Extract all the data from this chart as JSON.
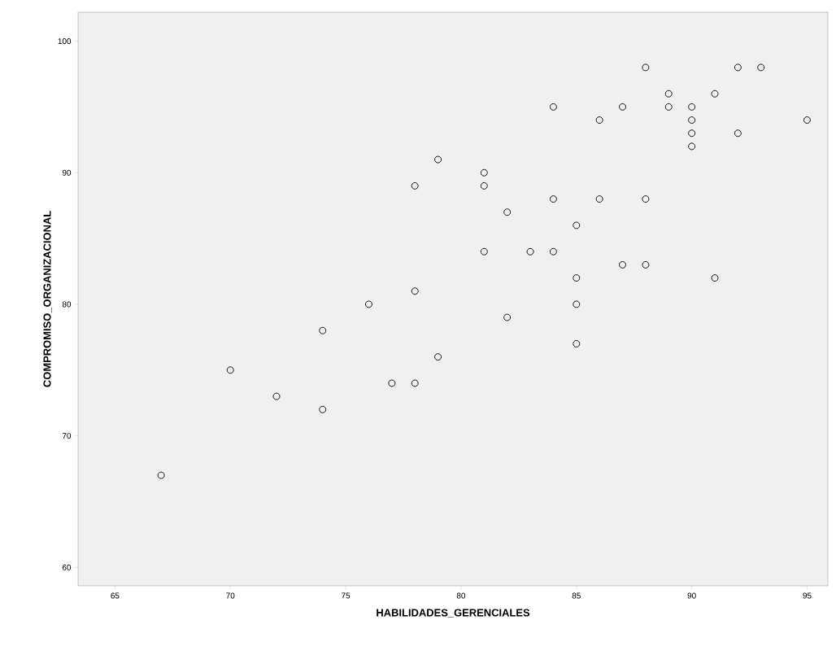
{
  "chart_data": {
    "type": "scatter",
    "xlabel": "HABILIDADES_GERENCIALES",
    "ylabel": "COMPROMISO_ORGANIZACIONAL",
    "x": [
      67,
      70,
      72,
      74,
      74,
      76,
      77,
      78,
      78,
      78,
      79,
      79,
      81,
      81,
      81,
      82,
      82,
      83,
      84,
      84,
      84,
      85,
      85,
      85,
      85,
      86,
      86,
      87,
      87,
      88,
      88,
      88,
      89,
      89,
      90,
      90,
      90,
      90,
      91,
      91,
      92,
      92,
      93,
      95
    ],
    "values": [
      67,
      75,
      73,
      78,
      72,
      80,
      74,
      74,
      81,
      89,
      91,
      76,
      90,
      89,
      84,
      87,
      79,
      84,
      95,
      88,
      84,
      86,
      82,
      80,
      77,
      94,
      88,
      95,
      83,
      98,
      88,
      83,
      96,
      95,
      95,
      94,
      93,
      92,
      96,
      82,
      98,
      93,
      98,
      94
    ],
    "color": "#000000",
    "marker": "circle",
    "grid": false,
    "xlim": [
      63.4,
      95.9
    ],
    "ylim": [
      58.6,
      102.2
    ],
    "xticks": [
      65,
      70,
      75,
      80,
      85,
      90,
      95
    ],
    "yticks": [
      60,
      70,
      80,
      90,
      100
    ]
  }
}
